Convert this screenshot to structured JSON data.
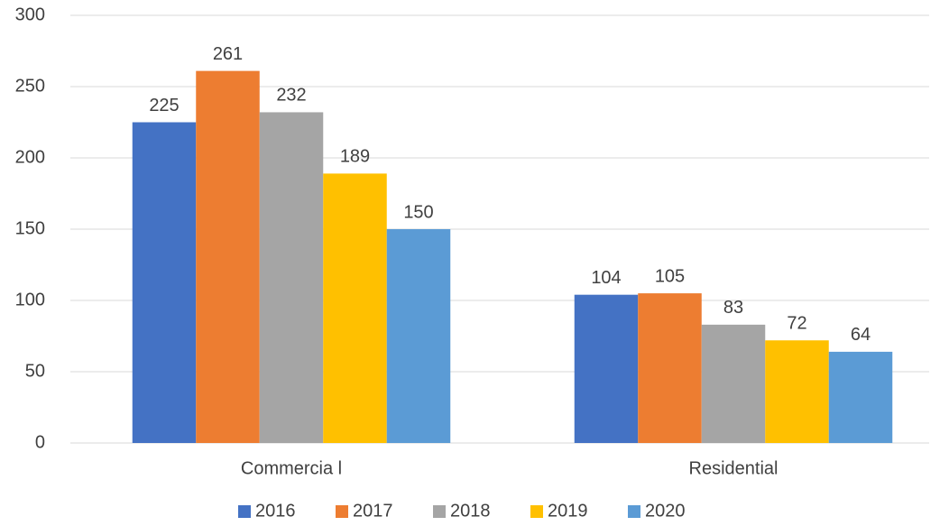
{
  "chart_data": {
    "type": "bar",
    "categories": [
      "Commercia l",
      "Residential"
    ],
    "series": [
      {
        "name": "2016",
        "color": "#4472c4",
        "values": [
          225,
          104
        ]
      },
      {
        "name": "2017",
        "color": "#ed7d31",
        "values": [
          261,
          105
        ]
      },
      {
        "name": "2018",
        "color": "#a5a5a5",
        "values": [
          232,
          83
        ]
      },
      {
        "name": "2019",
        "color": "#ffc000",
        "values": [
          189,
          72
        ]
      },
      {
        "name": "2020",
        "color": "#5b9bd5",
        "values": [
          150,
          64
        ]
      }
    ],
    "ylim": [
      0,
      300
    ],
    "yticks": [
      0,
      50,
      100,
      150,
      200,
      250,
      300
    ],
    "grid": true,
    "legend": "bottom"
  }
}
